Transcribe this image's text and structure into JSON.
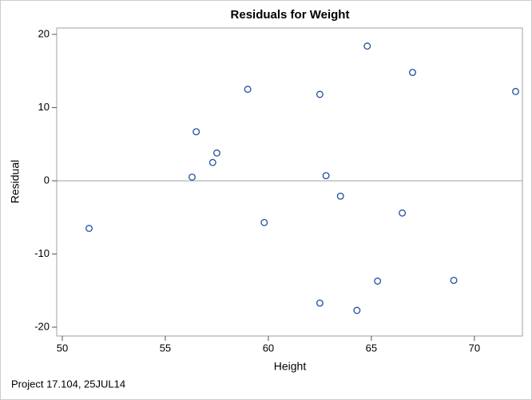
{
  "chart_data": {
    "type": "scatter",
    "title": "Residuals for Weight",
    "x_label": "Height",
    "y_label": "Residual",
    "footnote": "Project 17.104, 25JUL14",
    "x": [
      51.3,
      56.3,
      56.5,
      57.3,
      57.5,
      59.0,
      59.8,
      62.5,
      62.8,
      63.5,
      62.5,
      64.3,
      64.8,
      65.3,
      66.5,
      67.0,
      69.0,
      72.0
    ],
    "y": [
      -6.5,
      0.5,
      6.7,
      2.5,
      3.8,
      12.5,
      -5.7,
      11.8,
      0.7,
      -2.1,
      -16.7,
      -17.7,
      18.4,
      -13.7,
      -4.4,
      14.8,
      -13.6,
      12.2
    ],
    "color": "#1f4e9c",
    "xlim": [
      49.73,
      72.33
    ],
    "ylim": [
      -21.2,
      20.87
    ],
    "xticks": [
      50,
      55,
      60,
      65,
      70
    ],
    "yticks": [
      -20,
      -10,
      0,
      10,
      20
    ],
    "reference_line": 0
  }
}
